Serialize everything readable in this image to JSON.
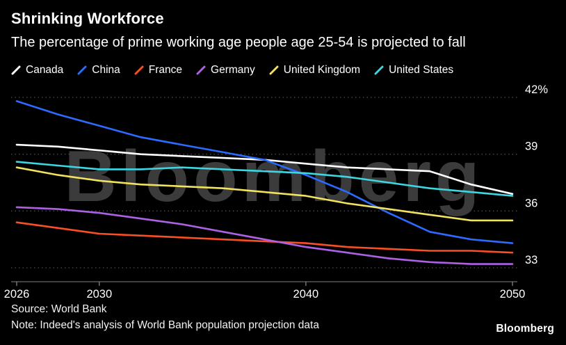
{
  "header": {
    "title": "Shrinking Workforce",
    "subtitle": "The percentage of prime working age people age 25-54 is projected to fall"
  },
  "watermark": "Bloomberg",
  "footer": {
    "source": "Source: World Bank",
    "note": "Note: Indeed's analysis of World Bank population projection data",
    "logo": "Bloomberg"
  },
  "colors": {
    "background": "#000000",
    "text": "#ffffff",
    "gridline": "#4d4d4d",
    "axis": "#828282",
    "watermark": "#3b3b3b"
  },
  "chart_data": {
    "type": "line",
    "title": "Shrinking Workforce",
    "subtitle": "The percentage of prime working age people age 25-54 is projected to fall",
    "xlabel": "",
    "ylabel": "%",
    "x": [
      2026,
      2028,
      2030,
      2032,
      2034,
      2036,
      2038,
      2040,
      2042,
      2044,
      2046,
      2048,
      2050
    ],
    "series": [
      {
        "name": "Canada",
        "color": "#ffffff",
        "values": [
          39.5,
          39.4,
          39.2,
          39.0,
          38.9,
          38.8,
          38.7,
          38.5,
          38.3,
          38.2,
          38.1,
          37.4,
          36.9
        ]
      },
      {
        "name": "China",
        "color": "#2d6aff",
        "values": [
          41.8,
          41.1,
          40.5,
          39.9,
          39.5,
          39.1,
          38.7,
          37.9,
          37.0,
          35.9,
          34.9,
          34.5,
          34.3
        ]
      },
      {
        "name": "France",
        "color": "#fa4f26",
        "values": [
          35.4,
          35.1,
          34.8,
          34.7,
          34.6,
          34.5,
          34.4,
          34.3,
          34.1,
          34.0,
          33.9,
          33.9,
          33.8
        ]
      },
      {
        "name": "Germany",
        "color": "#ad61e6",
        "values": [
          36.2,
          36.1,
          35.9,
          35.6,
          35.3,
          34.9,
          34.5,
          34.1,
          33.8,
          33.5,
          33.3,
          33.2,
          33.2
        ]
      },
      {
        "name": "United Kingdom",
        "color": "#f2e25e",
        "values": [
          38.3,
          37.9,
          37.6,
          37.4,
          37.3,
          37.2,
          37.0,
          36.8,
          36.4,
          36.1,
          35.8,
          35.5,
          35.5
        ]
      },
      {
        "name": "United States",
        "color": "#3ed6e0",
        "values": [
          38.6,
          38.4,
          38.2,
          38.2,
          38.3,
          38.2,
          38.1,
          38.0,
          37.8,
          37.5,
          37.2,
          37.0,
          36.8
        ]
      }
    ],
    "yticks": [
      {
        "value": 42,
        "label": "42%"
      },
      {
        "value": 39,
        "label": "39"
      },
      {
        "value": 36,
        "label": "36"
      },
      {
        "value": 33,
        "label": "33"
      }
    ],
    "xticks": [
      2026,
      2030,
      2040,
      2050
    ],
    "ylim": [
      32,
      42.5
    ],
    "grid": "horizontal-dotted",
    "legend_position": "top"
  }
}
